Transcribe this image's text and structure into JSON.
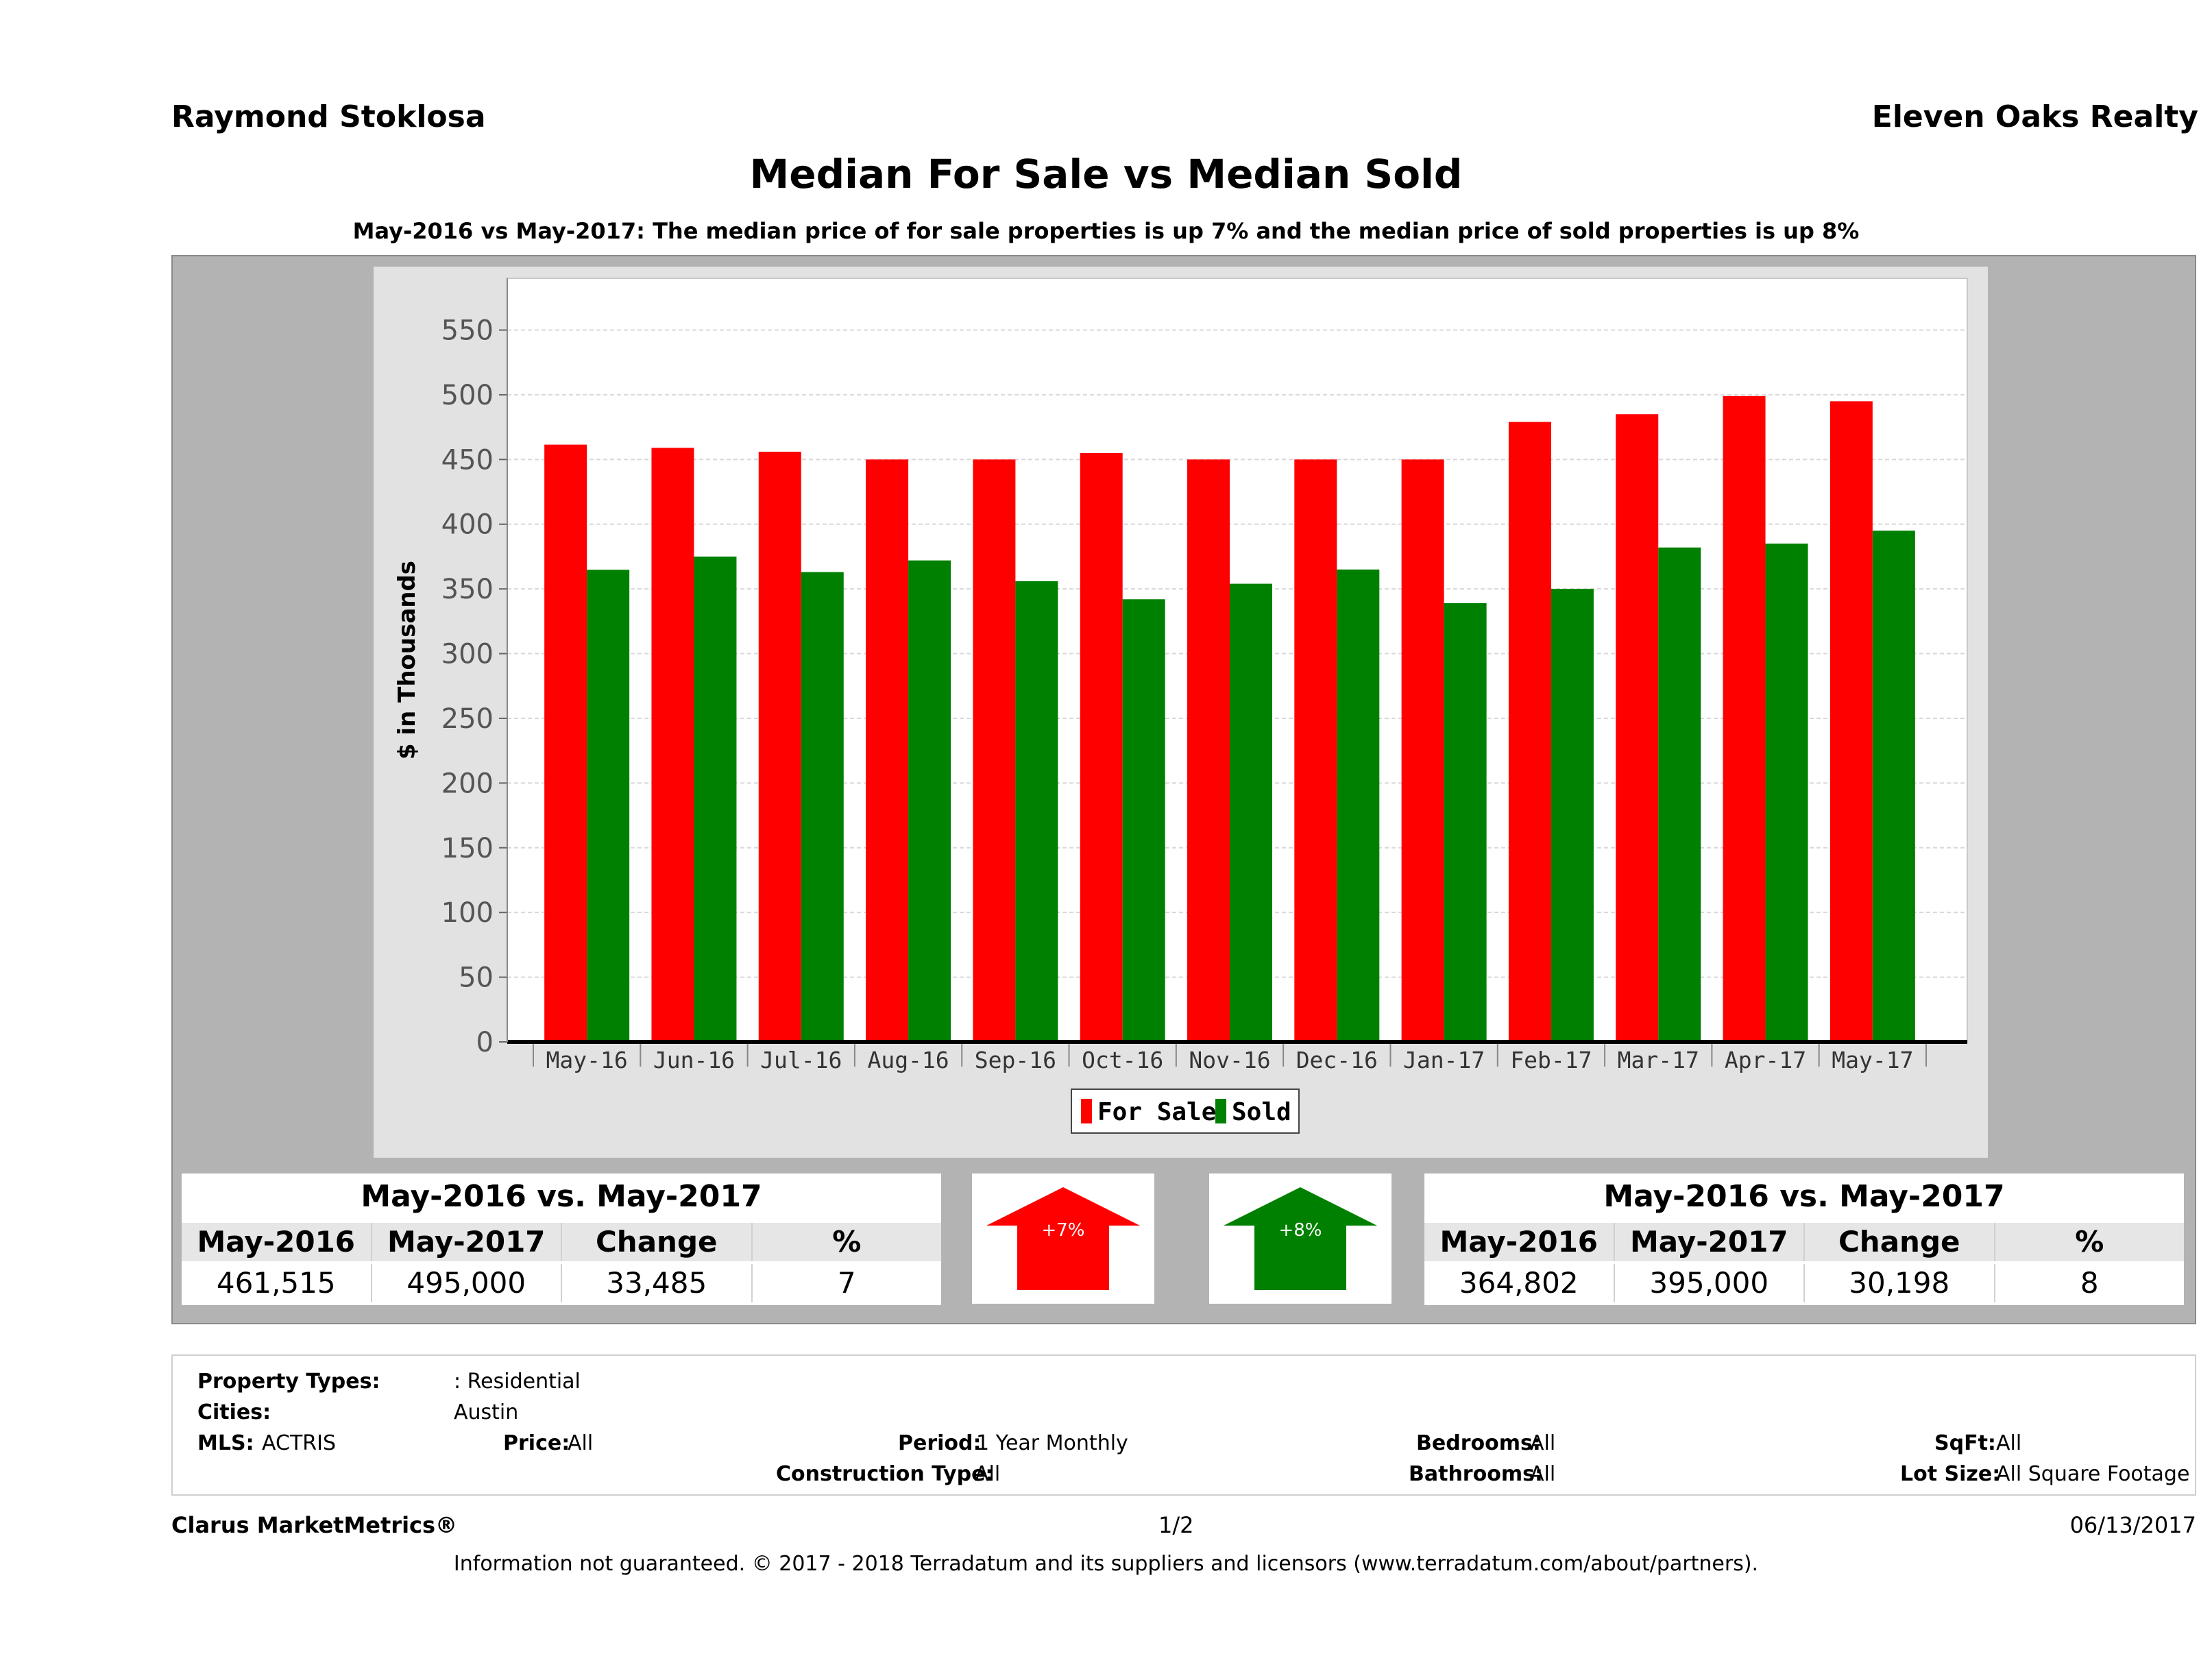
{
  "header": {
    "agent_name": "Raymond Stoklosa",
    "brokerage": "Eleven Oaks Realty",
    "title": "Median For Sale vs Median Sold",
    "subtitle": "May-2016 vs May-2017: The median price of for sale properties is up 7% and the median price of sold properties is up 8%"
  },
  "chart_data": {
    "type": "bar",
    "categories": [
      "May-16",
      "Jun-16",
      "Jul-16",
      "Aug-16",
      "Sep-16",
      "Oct-16",
      "Nov-16",
      "Dec-16",
      "Jan-17",
      "Feb-17",
      "Mar-17",
      "Apr-17",
      "May-17"
    ],
    "series": [
      {
        "name": "For Sale",
        "color": "#ff0000",
        "values": [
          461.5,
          459,
          456,
          450,
          450,
          455,
          450,
          450,
          450,
          479,
          485,
          499,
          495
        ]
      },
      {
        "name": "Sold",
        "color": "#008000",
        "values": [
          364.8,
          375,
          363,
          372,
          356,
          342,
          354,
          365,
          339,
          350,
          382,
          385,
          395
        ]
      }
    ],
    "ylabel": "$ in Thousands",
    "xlabel": "",
    "ylim": [
      0,
      590
    ],
    "yticks": [
      0,
      50,
      100,
      150,
      200,
      250,
      300,
      350,
      400,
      450,
      500,
      550
    ],
    "grid": true,
    "legend_position": "bottom"
  },
  "for_sale_summary": {
    "heading": "May-2016 vs. May-2017",
    "columns": [
      "May-2016",
      "May-2017",
      "Change",
      "%"
    ],
    "values": [
      "461,515",
      "495,000",
      "33,485",
      "7"
    ],
    "arrow_label": "+7%",
    "arrow_color": "#ff0000"
  },
  "sold_summary": {
    "heading": "May-2016 vs. May-2017",
    "columns": [
      "May-2016",
      "May-2017",
      "Change",
      "%"
    ],
    "values": [
      "364,802",
      "395,000",
      "30,198",
      "8"
    ],
    "arrow_label": "+8%",
    "arrow_color": "#008000"
  },
  "filters": {
    "property_types_label": "Property Types:",
    "property_types_value": ": Residential",
    "cities_label": "Cities:",
    "cities_value": "Austin",
    "mls_label": "MLS:",
    "mls_value": "ACTRIS",
    "price_label": "Price:",
    "price_value": "All",
    "period_label": "Period:",
    "period_value": "1 Year Monthly",
    "construction_label": "Construction Type:",
    "construction_value": "All",
    "bedrooms_label": "Bedrooms:",
    "bedrooms_value": "All",
    "bathrooms_label": "Bathrooms:",
    "bathrooms_value": "All",
    "sqft_label": "SqFt:",
    "sqft_value": "All",
    "lotsize_label": "Lot Size:",
    "lotsize_value": "All Square Footage"
  },
  "footer": {
    "product": "Clarus MarketMetrics®",
    "page": "1/2",
    "date": "06/13/2017",
    "disclaimer": "Information not guaranteed. © 2017 - 2018 Terradatum and its suppliers and licensors (www.terradatum.com/about/partners)."
  }
}
